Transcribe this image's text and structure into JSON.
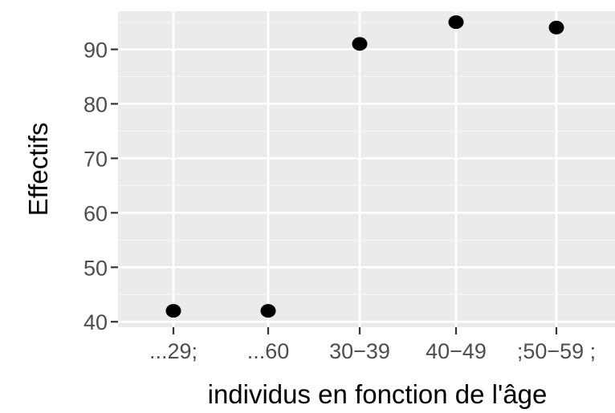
{
  "chart_data": {
    "type": "scatter",
    "xlabel": "individus en fonction de l'âge",
    "ylabel": "Effectifs",
    "categories": [
      "...29;",
      "...60",
      "30−39",
      "40−49",
      ";50−59 ;"
    ],
    "values": [
      42,
      42,
      91,
      95,
      94
    ],
    "ylim": [
      39,
      97
    ],
    "yticks": [
      40,
      50,
      60,
      70,
      80,
      90
    ],
    "grid": true,
    "legend": "none",
    "colors": {
      "panel": "#ebebeb",
      "grid_major": "#ffffff",
      "grid_minor": "#f5f5f5",
      "point": "#000000",
      "tick": "#333333"
    }
  }
}
